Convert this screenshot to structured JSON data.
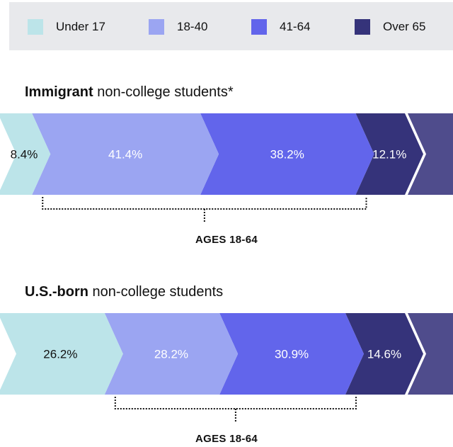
{
  "legend": [
    {
      "label": "Under 17",
      "color": "#bce4e9"
    },
    {
      "label": "18-40",
      "color": "#9ba5f2"
    },
    {
      "label": "41-64",
      "color": "#6265eb"
    },
    {
      "label": "Over 65",
      "color": "#35337a"
    }
  ],
  "sections": [
    {
      "title_bold": "Immigrant",
      "title_rest": " non-college students*",
      "bracket_label": "AGES 18-64"
    },
    {
      "title_bold": "U.S.-born",
      "title_rest": " non-college students",
      "bracket_label": "AGES 18-64"
    }
  ],
  "chart_data": [
    {
      "type": "bar",
      "stacked": true,
      "orientation": "horizontal",
      "title": "Immigrant non-college students*",
      "categories": [
        "Under 17",
        "18-40",
        "41-64",
        "Over 65"
      ],
      "values": [
        8.4,
        41.4,
        38.2,
        12.1
      ],
      "labels": [
        "8.4%",
        "41.4%",
        "38.2%",
        "12.1%"
      ],
      "label_colors": [
        "#111111",
        "#ffffff",
        "#ffffff",
        "#ffffff"
      ],
      "colors": [
        "#bce4e9",
        "#9ba5f2",
        "#6265eb",
        "#35337a"
      ],
      "annotation": "AGES 18-64"
    },
    {
      "type": "bar",
      "stacked": true,
      "orientation": "horizontal",
      "title": "U.S.-born non-college students",
      "categories": [
        "Under 17",
        "18-40",
        "41-64",
        "Over 65"
      ],
      "values": [
        26.2,
        28.2,
        30.9,
        14.6
      ],
      "labels": [
        "26.2%",
        "28.2%",
        "30.9%",
        "14.6%"
      ],
      "label_colors": [
        "#111111",
        "#ffffff",
        "#ffffff",
        "#ffffff"
      ],
      "colors": [
        "#bce4e9",
        "#9ba5f2",
        "#6265eb",
        "#35337a"
      ],
      "annotation": "AGES 18-64"
    }
  ],
  "chart_style": {
    "tip_color": "#4f4c8c",
    "bracket_color": "#111111"
  }
}
